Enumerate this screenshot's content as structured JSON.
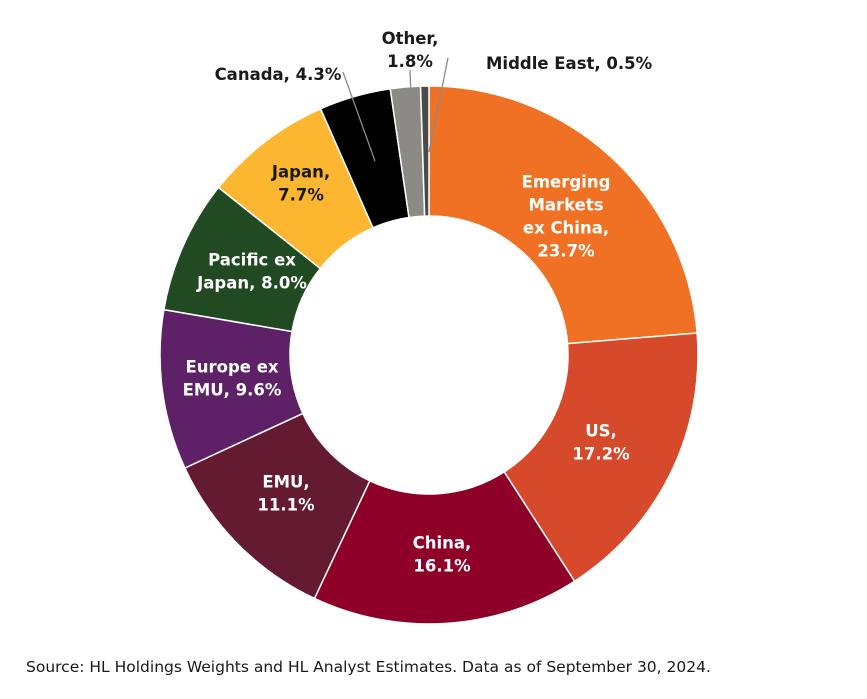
{
  "chart_data": {
    "type": "pie",
    "title": "",
    "slices": [
      {
        "label_lines": [
          "Emerging",
          "Markets",
          "ex China,",
          "23.7%"
        ],
        "name": "Emerging Markets ex China",
        "value": 23.7,
        "color": "#F07124",
        "text_color": "#ffffff"
      },
      {
        "label_lines": [
          "US,",
          "17.2%"
        ],
        "name": "US",
        "value": 17.2,
        "color": "#D6492A",
        "text_color": "#ffffff"
      },
      {
        "label_lines": [
          "China,",
          "16.1%"
        ],
        "name": "China",
        "value": 16.1,
        "color": "#8E0028",
        "text_color": "#ffffff"
      },
      {
        "label_lines": [
          "EMU,",
          "11.1%"
        ],
        "name": "EMU",
        "value": 11.1,
        "color": "#641A30",
        "text_color": "#ffffff"
      },
      {
        "label_lines": [
          "Europe ex",
          "EMU, 9.6%"
        ],
        "name": "Europe ex EMU",
        "value": 9.6,
        "color": "#5E2168",
        "text_color": "#ffffff"
      },
      {
        "label_lines": [
          "Pacific ex",
          "Japan, 8.0%"
        ],
        "name": "Pacific ex Japan",
        "value": 8.0,
        "color": "#214A22",
        "text_color": "#ffffff"
      },
      {
        "label_lines": [
          "Japan,",
          "7.7%"
        ],
        "name": "Japan",
        "value": 7.7,
        "color": "#FDB630",
        "text_color": "#1a1a1a"
      },
      {
        "label_lines": [
          "Canada, 4.3%"
        ],
        "name": "Canada",
        "value": 4.3,
        "color": "#000000",
        "text_color": "#1a1a1a"
      },
      {
        "label_lines": [
          "Other,",
          "1.8%"
        ],
        "name": "Other",
        "value": 1.8,
        "color": "#8C8A85",
        "text_color": "#1a1a1a"
      },
      {
        "label_lines": [
          "Middle East, 0.5%"
        ],
        "name": "Middle East",
        "value": 0.5,
        "color": "#4A4A4A",
        "text_color": "#1a1a1a"
      }
    ]
  },
  "source_note": "Source: HL Holdings Weights and HL Analyst Estimates. Data as of September 30, 2024."
}
